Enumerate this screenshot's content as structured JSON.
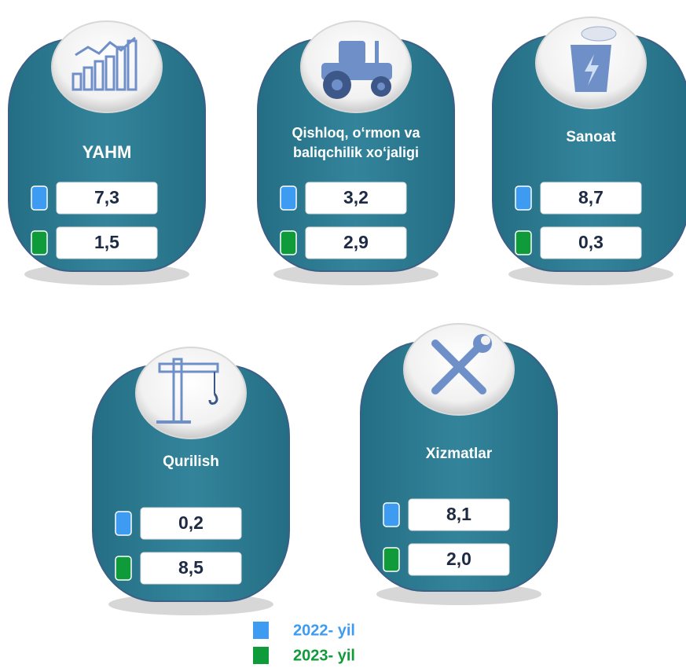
{
  "cards": [
    {
      "title": [
        "YAHM"
      ],
      "values": [
        "7,3",
        "1,5"
      ]
    },
    {
      "title": [
        "Qishloq, o‘rmon va",
        "baliqchilik xo‘jaligi"
      ],
      "values": [
        "3,2",
        "2,9"
      ]
    },
    {
      "title": [
        "Sanoat"
      ],
      "values": [
        "8,7",
        "0,3"
      ]
    },
    {
      "title": [
        "Qurilish"
      ],
      "values": [
        "0,2",
        "8,5"
      ]
    },
    {
      "title": [
        "Xizmatlar"
      ],
      "values": [
        "8,1",
        "2,0"
      ]
    }
  ],
  "legend": [
    {
      "label": "2022- yil",
      "color": "#3d9cf2"
    },
    {
      "label": "2023- yil",
      "color": "#0f9b3a"
    }
  ]
}
